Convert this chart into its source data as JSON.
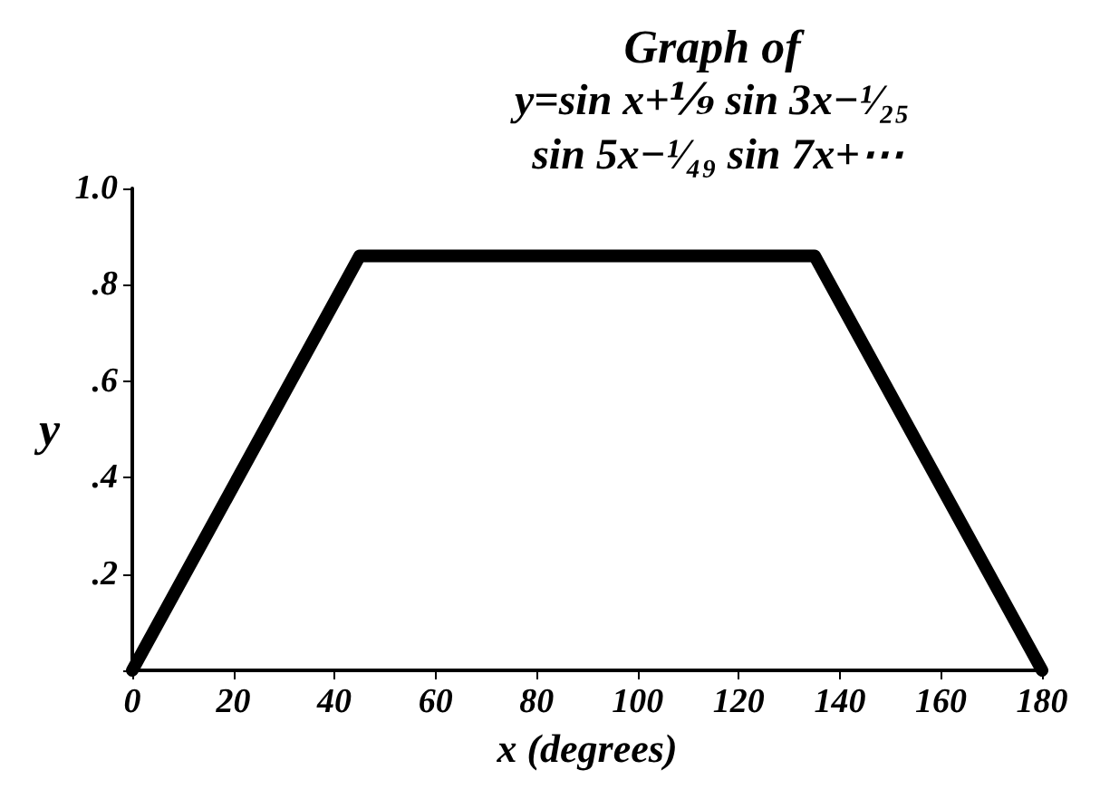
{
  "chart_data": {
    "type": "line",
    "title": "Graph of",
    "subtitle": "y=sin x+⅑ sin 3x−¹⁄₂₅ sin 5x−¹⁄₄₉ sin 7x+⋯",
    "xlabel": "x (degrees)",
    "ylabel": "y",
    "x": [
      0,
      45,
      135,
      180
    ],
    "series": [
      {
        "color": "#000000",
        "values": [
          0,
          0.86,
          0.86,
          0
        ]
      }
    ],
    "xlim": [
      0,
      180
    ],
    "xticks": [
      0,
      20,
      40,
      60,
      80,
      100,
      120,
      140,
      160,
      180
    ],
    "ylim": [
      0,
      1
    ],
    "yticks": [
      {
        "value": 0,
        "label": null
      },
      {
        "value": 0.2,
        "label": ".2"
      },
      {
        "value": 0.4,
        "label": ".4"
      },
      {
        "value": 0.6,
        "label": ".6"
      },
      {
        "value": 0.8,
        "label": ".8"
      },
      {
        "value": 1,
        "label": "1.0"
      }
    ],
    "grid": false,
    "line_style": "solid"
  }
}
